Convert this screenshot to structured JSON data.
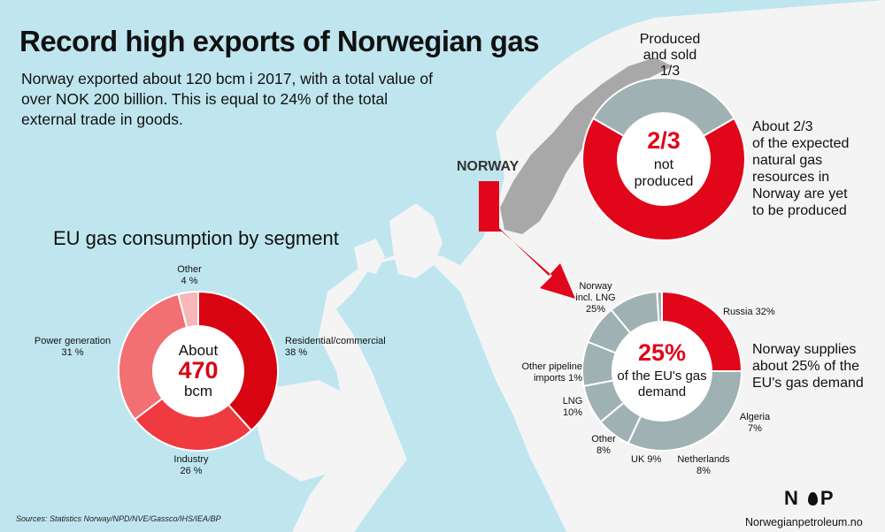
{
  "header": {
    "title": "Record high exports of Norwegian gas",
    "intro": "Norway exported about 120 bcm i 2017, with a total value of over NOK 200 billion. This is equal to 24% of the total external trade in goods."
  },
  "map": {
    "norway_label": "NORWAY"
  },
  "chart_data": [
    {
      "type": "pie",
      "title": "EU gas consumption by segment",
      "center_label": [
        "About",
        "470",
        "bcm"
      ],
      "slices": [
        {
          "label": "Residential/commercial",
          "value": 38,
          "value_label": "38 %",
          "color": "#d90412"
        },
        {
          "label": "Industry",
          "value": 26,
          "value_label": "26 %",
          "color": "#ef3a3f"
        },
        {
          "label": "Power generation",
          "value": 31,
          "value_label": "31 %",
          "color": "#f26f72"
        },
        {
          "label": "Other",
          "value": 4,
          "value_label": "4 %",
          "color": "#f7b6b8"
        }
      ]
    },
    {
      "type": "pie",
      "title": "",
      "center_label": [
        "2/3",
        "not",
        "produced"
      ],
      "slices": [
        {
          "label": "Produced and sold",
          "value": 33.3,
          "value_label": "1/3",
          "color": "#9fb1b3"
        },
        {
          "label": "Not produced",
          "value": 66.7,
          "value_label": "2/3",
          "color": "#e1061a"
        }
      ],
      "annotation": "About 2/3 of the expected natural gas resources in Norway are yet to be produced"
    },
    {
      "type": "pie",
      "title": "",
      "center_label": [
        "25%",
        "of the EU's gas",
        "demand"
      ],
      "slices": [
        {
          "label": "Norway incl. LNG",
          "value": 25,
          "value_label": "25%",
          "color": "#e1061a"
        },
        {
          "label": "Russia",
          "value": 32,
          "value_label": "32%",
          "color": "#9fb1b3"
        },
        {
          "label": "Algeria",
          "value": 7,
          "value_label": "7%",
          "color": "#9fb1b3"
        },
        {
          "label": "Netherlands",
          "value": 8,
          "value_label": "8%",
          "color": "#9fb1b3"
        },
        {
          "label": "UK",
          "value": 9,
          "value_label": "9%",
          "color": "#9fb1b3"
        },
        {
          "label": "Other",
          "value": 8,
          "value_label": "8%",
          "color": "#9fb1b3"
        },
        {
          "label": "LNG",
          "value": 10,
          "value_label": "10%",
          "color": "#9fb1b3"
        },
        {
          "label": "Other pipeline imports",
          "value": 1,
          "value_label": "1%",
          "color": "#9fb1b3"
        }
      ],
      "annotation": "Norway supplies about 25% of the EU's gas demand"
    }
  ],
  "labels": {
    "seg_other": [
      "Other",
      "4 %"
    ],
    "seg_residential": [
      "Residential/commercial",
      "38 %"
    ],
    "seg_industry": [
      "Industry",
      "26 %"
    ],
    "seg_power": [
      "Power generation",
      "31 %"
    ],
    "res_produced": [
      "Produced",
      "and sold",
      "1/3"
    ],
    "res_note": [
      "About 2/3",
      "of the expected",
      "natural gas",
      "resources in",
      "Norway are yet",
      "to be produced"
    ],
    "sup_norway": [
      "Norway",
      "incl. LNG",
      "25%"
    ],
    "sup_russia": [
      "Russia 32%"
    ],
    "sup_algeria": [
      "Algeria",
      "7%"
    ],
    "sup_netherlands": [
      "Netherlands",
      "8%"
    ],
    "sup_uk": [
      "UK 9%"
    ],
    "sup_other": [
      "Other",
      "8%"
    ],
    "sup_lng": [
      "LNG",
      "10%"
    ],
    "sup_otherpipe": [
      "Other pipeline",
      "imports 1%"
    ],
    "sup_note": [
      "Norway supplies",
      "about 25% of the",
      "EU's gas demand"
    ]
  },
  "footer": {
    "sources": "Sources: Statistics Norway/NPD/NVE/Gassco/IHS/IEA/BP",
    "logo_left": "N",
    "logo_right": "P",
    "site": "Norwegianpetroleum.no"
  },
  "colors": {
    "sea": "#bfe6ef",
    "land": "#f4f4f4",
    "norway": "#a8a8a8",
    "red": "#e1061a",
    "gray": "#9fb1b3"
  }
}
